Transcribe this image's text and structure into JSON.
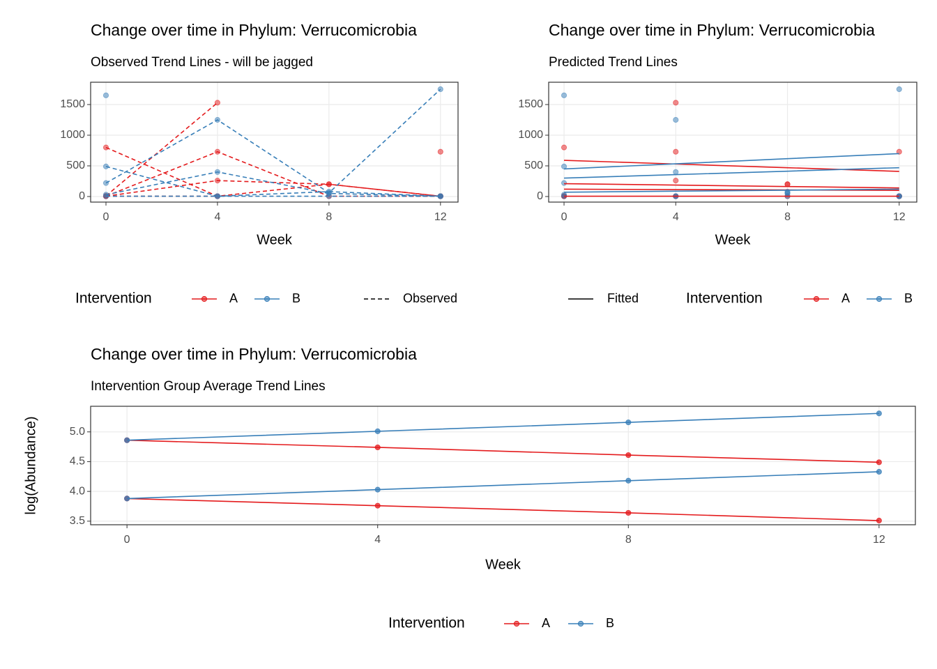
{
  "chart_data": [
    {
      "type": "line",
      "title": "Change over time in Phylum: Verrucomicrobia",
      "subtitle": "Observed Trend Lines - will be jagged",
      "x_label": "Week",
      "x": [
        0,
        4,
        8,
        12
      ],
      "xlim": [
        -0.55,
        12.63
      ],
      "xticks": [
        0,
        4,
        8,
        12
      ],
      "ylim": [
        -91,
        1864
      ],
      "yticks": [
        0,
        500,
        1000,
        1500
      ],
      "grid": true,
      "legend": {
        "title": "Intervention",
        "items": [
          {
            "name": "A",
            "color": "#e41a1c"
          },
          {
            "name": "B",
            "color": "#377eb8"
          }
        ]
      },
      "linetype_legend": {
        "label": "Observed",
        "style": "dashed"
      },
      "series": [
        {
          "color": "#e41a1c",
          "style": "dashed",
          "values": [
            10,
            1530,
            null,
            5
          ]
        },
        {
          "color": "#e41a1c",
          "style": "dashed",
          "values": [
            800,
            5,
            200,
            5
          ]
        },
        {
          "color": "#e41a1c",
          "style": "dashed",
          "values": [
            5,
            730,
            5,
            5
          ]
        },
        {
          "color": "#e41a1c",
          "style": "dashed",
          "values": [
            5,
            5,
            null,
            730
          ]
        },
        {
          "color": "#e41a1c",
          "style": "dashed",
          "values": [
            5,
            260,
            200,
            5
          ]
        },
        {
          "color": "#377eb8",
          "style": "dashed",
          "values": [
            1650,
            null,
            null,
            null
          ]
        },
        {
          "color": "#377eb8",
          "style": "dashed",
          "values": [
            490,
            5,
            5,
            5
          ]
        },
        {
          "color": "#377eb8",
          "style": "dashed",
          "values": [
            220,
            1250,
            60,
            1750
          ]
        },
        {
          "color": "#377eb8",
          "style": "dashed",
          "values": [
            30,
            400,
            50,
            5
          ]
        },
        {
          "color": "#377eb8",
          "style": "dashed",
          "values": [
            5,
            5,
            80,
            5
          ]
        }
      ]
    },
    {
      "type": "line",
      "title": "Change over time in Phylum: Verrucomicrobia",
      "subtitle": "Predicted Trend Lines",
      "x_label": "Week",
      "x": [
        0,
        4,
        8,
        12
      ],
      "xlim": [
        -0.55,
        12.63
      ],
      "xticks": [
        0,
        4,
        8,
        12
      ],
      "ylim": [
        -91,
        1864
      ],
      "yticks": [
        0,
        500,
        1000,
        1500
      ],
      "grid": true,
      "legend": {
        "title": "Intervention",
        "items": [
          {
            "name": "A",
            "color": "#e41a1c"
          },
          {
            "name": "B",
            "color": "#377eb8"
          }
        ]
      },
      "linetype_legend": {
        "label": "Fitted",
        "style": "solid"
      },
      "series": [
        {
          "color": "#e41a1c",
          "style": "points",
          "values": [
            10,
            1530,
            null,
            5
          ]
        },
        {
          "color": "#e41a1c",
          "style": "points",
          "values": [
            800,
            5,
            200,
            5
          ]
        },
        {
          "color": "#e41a1c",
          "style": "points",
          "values": [
            5,
            730,
            5,
            5
          ]
        },
        {
          "color": "#e41a1c",
          "style": "points",
          "values": [
            5,
            5,
            null,
            730
          ]
        },
        {
          "color": "#e41a1c",
          "style": "points",
          "values": [
            5,
            260,
            200,
            5
          ]
        },
        {
          "color": "#377eb8",
          "style": "points",
          "values": [
            1650,
            null,
            null,
            null
          ]
        },
        {
          "color": "#377eb8",
          "style": "points",
          "values": [
            490,
            5,
            5,
            5
          ]
        },
        {
          "color": "#377eb8",
          "style": "points",
          "values": [
            220,
            1250,
            60,
            1750
          ]
        },
        {
          "color": "#377eb8",
          "style": "points",
          "values": [
            30,
            400,
            50,
            5
          ]
        },
        {
          "color": "#377eb8",
          "style": "points",
          "values": [
            5,
            5,
            80,
            5
          ]
        },
        {
          "color": "#e41a1c",
          "style": "solid",
          "values": [
            590,
            530,
            470,
            410
          ]
        },
        {
          "color": "#e41a1c",
          "style": "solid",
          "values": [
            210,
            187,
            163,
            140
          ]
        },
        {
          "color": "#e41a1c",
          "style": "solid",
          "values": [
            120,
            113,
            107,
            100
          ]
        },
        {
          "color": "#e41a1c",
          "style": "solid",
          "values": [
            5,
            5,
            5,
            5
          ]
        },
        {
          "color": "#377eb8",
          "style": "solid",
          "values": [
            450,
            533,
            617,
            700
          ]
        },
        {
          "color": "#377eb8",
          "style": "solid",
          "values": [
            300,
            357,
            413,
            470
          ]
        },
        {
          "color": "#377eb8",
          "style": "solid",
          "values": [
            70,
            87,
            103,
            120
          ]
        }
      ]
    },
    {
      "type": "line",
      "title": "Change over time in Phylum: Verrucomicrobia",
      "subtitle": "Intervention Group Average Trend Lines",
      "x_label": "Week",
      "y_label": "log(Abundance)",
      "x": [
        0,
        4,
        8,
        12
      ],
      "xlim": [
        -0.58,
        12.58
      ],
      "xticks": [
        0,
        4,
        8,
        12
      ],
      "ylim": [
        3.44,
        5.43
      ],
      "yticks": [
        3.5,
        {
          "value": 4.0,
          "label": "4.0"
        },
        4.5,
        {
          "value": 5.0,
          "label": "5.0"
        }
      ],
      "grid": true,
      "legend": {
        "title": "Intervention",
        "items": [
          {
            "name": "A",
            "color": "#e41a1c"
          },
          {
            "name": "B",
            "color": "#377eb8"
          }
        ]
      },
      "series": [
        {
          "color": "#e41a1c",
          "style": "solid-points",
          "values": [
            4.86,
            4.74,
            4.61,
            4.49
          ]
        },
        {
          "color": "#e41a1c",
          "style": "solid-points",
          "values": [
            3.88,
            3.76,
            3.64,
            3.51
          ]
        },
        {
          "color": "#377eb8",
          "style": "solid-points",
          "values": [
            4.86,
            5.01,
            5.16,
            5.31
          ]
        },
        {
          "color": "#377eb8",
          "style": "solid-points",
          "values": [
            3.88,
            4.03,
            4.18,
            4.33
          ]
        }
      ]
    }
  ]
}
